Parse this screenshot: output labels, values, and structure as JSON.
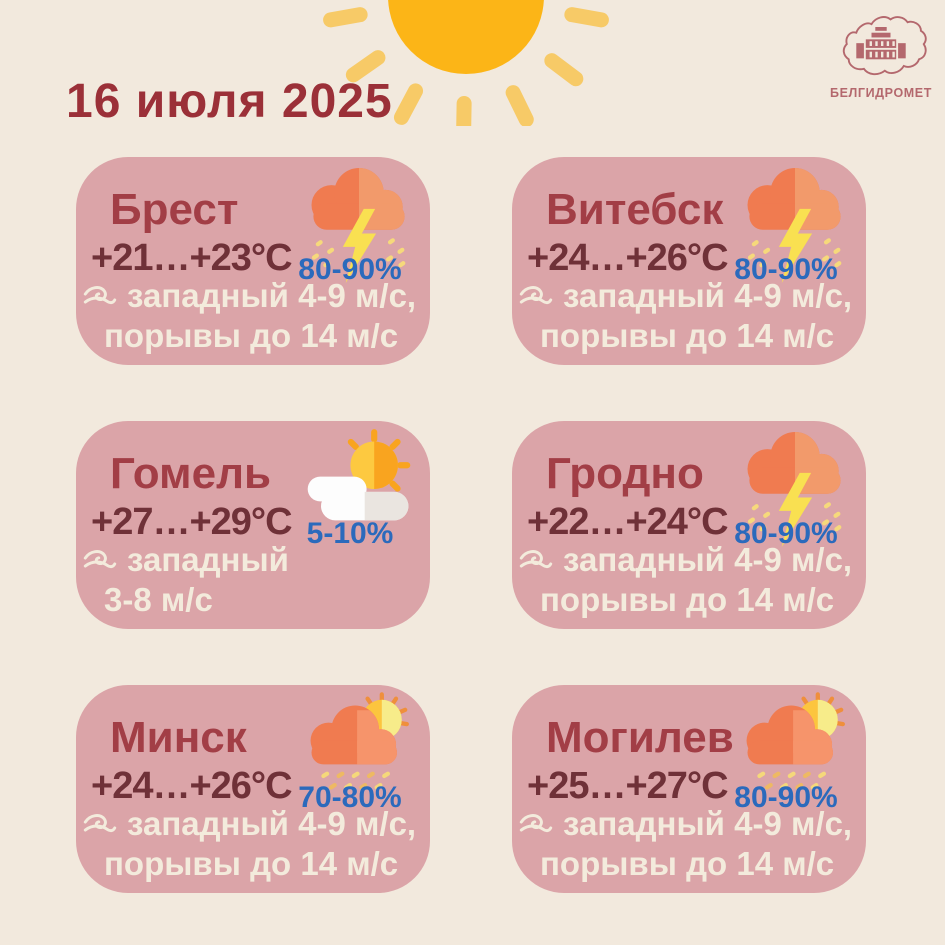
{
  "page": {
    "date": "16 июля 2025"
  },
  "logo": {
    "label": "БЕЛГИДРОМЕТ",
    "emblem": "belarus-map-building-icon"
  },
  "icons": {
    "header": "sun-icon",
    "wind": "wind-swirl-icon"
  },
  "colors": {
    "background": "#f2e9dd",
    "card": "#dba4a8",
    "city": "#a23e46",
    "temperature": "#6f3138",
    "precipitation": "#2b6abc",
    "wind_text": "#f3ebdc",
    "date": "#9b3038",
    "sun": "#fcb517",
    "sun_rays": "#f7ca67",
    "cloud_orange": "#f07b50",
    "lightning": "#f9e051",
    "logo": "#b4686d"
  },
  "cards": [
    {
      "city": "Брест",
      "temp": "+21…+23°C",
      "precip": "80-90%",
      "wind_line1": "западный 4-9 м/с,",
      "wind_line2": "порывы до 14 м/с",
      "icon": "thunderstorm"
    },
    {
      "city": "Витебск",
      "temp": "+24…+26°C",
      "precip": "80-90%",
      "wind_line1": "западный 4-9 м/с,",
      "wind_line2": "порывы до 14 м/с",
      "icon": "thunderstorm"
    },
    {
      "city": "Гомель",
      "temp": "+27…+29°C",
      "precip": "5-10%",
      "wind_line1": "западный",
      "wind_line2": "3-8 м/с",
      "icon": "partly-sunny"
    },
    {
      "city": "Гродно",
      "temp": "+22…+24°C",
      "precip": "80-90%",
      "wind_line1": "западный 4-9 м/с,",
      "wind_line2": "порывы до 14 м/с",
      "icon": "thunderstorm"
    },
    {
      "city": "Минск",
      "temp": "+24…+26°C",
      "precip": "70-80%",
      "wind_line1": "западный 4-9 м/с,",
      "wind_line2": "порывы до 14 м/с",
      "icon": "sun-rain"
    },
    {
      "city": "Могилев",
      "temp": "+25…+27°C",
      "precip": "80-90%",
      "wind_line1": "западный 4-9 м/с,",
      "wind_line2": "порывы до 14 м/с",
      "icon": "sun-rain"
    }
  ]
}
